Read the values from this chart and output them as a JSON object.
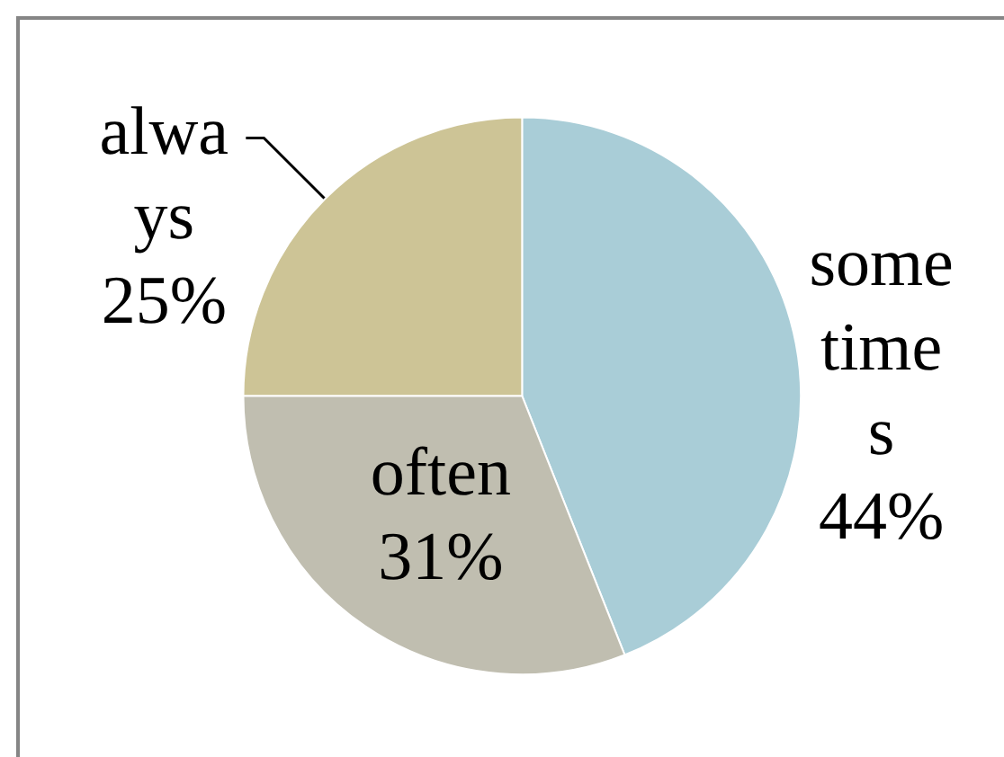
{
  "chart_data": {
    "type": "pie",
    "categories": [
      "sometimes",
      "often",
      "always"
    ],
    "values": [
      44,
      31,
      25
    ],
    "colors": [
      "#a9cdd7",
      "#c0beb0",
      "#cdc496"
    ],
    "value_labels": [
      "44%",
      "31%",
      "25%"
    ]
  }
}
